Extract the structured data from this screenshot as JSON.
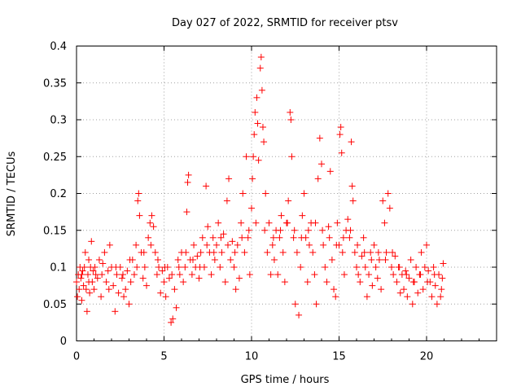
{
  "chart_data": {
    "type": "scatter",
    "title": "Day 027 of 2022, SRMTID for receiver ptsv",
    "xlabel": "GPS time / hours",
    "ylabel": "SRMTID / TECUs",
    "xlim": [
      0,
      24
    ],
    "ylim": [
      0,
      0.4
    ],
    "xticks": [
      0,
      5,
      10,
      15,
      20
    ],
    "yticks": [
      0,
      0.05,
      0.1,
      0.15,
      0.2,
      0.25,
      0.3,
      0.35,
      0.4
    ],
    "xtick_labels": [
      "0",
      "5",
      "10",
      "15",
      "20"
    ],
    "ytick_labels": [
      "0",
      "0.05",
      "0.1",
      "0.15",
      "0.2",
      "0.25",
      "0.3",
      "0.35",
      "0.4"
    ],
    "grid": true,
    "marker": "+",
    "series_color": "#ff0000",
    "series": [
      {
        "name": "SRMTID",
        "points": [
          [
            0.0,
            0.08
          ],
          [
            0.05,
            0.06
          ],
          [
            0.1,
            0.09
          ],
          [
            0.15,
            0.07
          ],
          [
            0.2,
            0.1
          ],
          [
            0.25,
            0.085
          ],
          [
            0.3,
            0.055
          ],
          [
            0.35,
            0.095
          ],
          [
            0.4,
            0.075
          ],
          [
            0.45,
            0.1
          ],
          [
            0.5,
            0.12
          ],
          [
            0.55,
            0.07
          ],
          [
            0.6,
            0.04
          ],
          [
            0.65,
            0.09
          ],
          [
            0.7,
            0.11
          ],
          [
            0.75,
            0.065
          ],
          [
            0.8,
            0.1
          ],
          [
            0.85,
            0.135
          ],
          [
            0.9,
            0.08
          ],
          [
            0.95,
            0.095
          ],
          [
            1.0,
            0.07
          ],
          [
            1.1,
            0.09
          ],
          [
            1.2,
            0.085
          ],
          [
            1.3,
            0.11
          ],
          [
            1.4,
            0.06
          ],
          [
            1.5,
            0.105
          ],
          [
            1.6,
            0.12
          ],
          [
            1.7,
            0.08
          ],
          [
            1.8,
            0.095
          ],
          [
            1.9,
            0.13
          ],
          [
            2.0,
            0.1
          ],
          [
            2.1,
            0.075
          ],
          [
            2.2,
            0.04
          ],
          [
            2.3,
            0.09
          ],
          [
            2.4,
            0.065
          ],
          [
            2.5,
            0.1
          ],
          [
            2.6,
            0.085
          ],
          [
            2.7,
            0.06
          ],
          [
            2.8,
            0.07
          ],
          [
            2.9,
            0.095
          ],
          [
            3.0,
            0.05
          ],
          [
            3.1,
            0.08
          ],
          [
            3.2,
            0.11
          ],
          [
            3.3,
            0.09
          ],
          [
            3.4,
            0.13
          ],
          [
            3.5,
            0.19
          ],
          [
            3.55,
            0.2
          ],
          [
            3.6,
            0.17
          ],
          [
            3.7,
            0.12
          ],
          [
            3.8,
            0.085
          ],
          [
            3.9,
            0.1
          ],
          [
            4.0,
            0.075
          ],
          [
            4.1,
            0.14
          ],
          [
            4.2,
            0.16
          ],
          [
            4.3,
            0.17
          ],
          [
            4.4,
            0.155
          ],
          [
            4.5,
            0.12
          ],
          [
            4.6,
            0.09
          ],
          [
            4.7,
            0.1
          ],
          [
            4.8,
            0.065
          ],
          [
            4.9,
            0.095
          ],
          [
            5.0,
            0.08
          ],
          [
            5.1,
            0.06
          ],
          [
            5.2,
            0.1
          ],
          [
            5.3,
            0.085
          ],
          [
            5.4,
            0.025
          ],
          [
            5.5,
            0.03
          ],
          [
            5.6,
            0.07
          ],
          [
            5.7,
            0.045
          ],
          [
            5.8,
            0.11
          ],
          [
            5.9,
            0.09
          ],
          [
            6.0,
            0.12
          ],
          [
            6.1,
            0.08
          ],
          [
            6.2,
            0.1
          ],
          [
            6.3,
            0.175
          ],
          [
            6.35,
            0.215
          ],
          [
            6.4,
            0.225
          ],
          [
            6.5,
            0.11
          ],
          [
            6.6,
            0.09
          ],
          [
            6.7,
            0.13
          ],
          [
            6.8,
            0.1
          ],
          [
            6.9,
            0.115
          ],
          [
            7.0,
            0.085
          ],
          [
            7.1,
            0.12
          ],
          [
            7.2,
            0.14
          ],
          [
            7.3,
            0.1
          ],
          [
            7.4,
            0.21
          ],
          [
            7.5,
            0.155
          ],
          [
            7.6,
            0.12
          ],
          [
            7.7,
            0.09
          ],
          [
            7.8,
            0.14
          ],
          [
            7.9,
            0.11
          ],
          [
            8.0,
            0.13
          ],
          [
            8.1,
            0.16
          ],
          [
            8.2,
            0.1
          ],
          [
            8.3,
            0.12
          ],
          [
            8.4,
            0.145
          ],
          [
            8.5,
            0.08
          ],
          [
            8.6,
            0.19
          ],
          [
            8.7,
            0.22
          ],
          [
            8.8,
            0.11
          ],
          [
            8.9,
            0.135
          ],
          [
            9.0,
            0.1
          ],
          [
            9.1,
            0.07
          ],
          [
            9.2,
            0.13
          ],
          [
            9.3,
            0.085
          ],
          [
            9.4,
            0.16
          ],
          [
            9.5,
            0.2
          ],
          [
            9.6,
            0.12
          ],
          [
            9.7,
            0.25
          ],
          [
            9.8,
            0.14
          ],
          [
            9.9,
            0.09
          ],
          [
            10.0,
            0.18
          ],
          [
            10.05,
            0.22
          ],
          [
            10.1,
            0.25
          ],
          [
            10.15,
            0.28
          ],
          [
            10.2,
            0.31
          ],
          [
            10.3,
            0.33
          ],
          [
            10.35,
            0.295
          ],
          [
            10.4,
            0.245
          ],
          [
            10.5,
            0.37
          ],
          [
            10.55,
            0.385
          ],
          [
            10.6,
            0.34
          ],
          [
            10.65,
            0.29
          ],
          [
            10.7,
            0.27
          ],
          [
            10.8,
            0.2
          ],
          [
            10.9,
            0.12
          ],
          [
            11.0,
            0.16
          ],
          [
            11.1,
            0.09
          ],
          [
            11.2,
            0.13
          ],
          [
            11.3,
            0.11
          ],
          [
            11.4,
            0.15
          ],
          [
            11.5,
            0.09
          ],
          [
            11.6,
            0.14
          ],
          [
            11.7,
            0.17
          ],
          [
            11.8,
            0.12
          ],
          [
            11.9,
            0.08
          ],
          [
            12.0,
            0.16
          ],
          [
            12.1,
            0.19
          ],
          [
            12.2,
            0.31
          ],
          [
            12.25,
            0.3
          ],
          [
            12.3,
            0.25
          ],
          [
            12.4,
            0.14
          ],
          [
            12.5,
            0.05
          ],
          [
            12.6,
            0.12
          ],
          [
            12.7,
            0.035
          ],
          [
            12.8,
            0.1
          ],
          [
            12.9,
            0.17
          ],
          [
            13.0,
            0.2
          ],
          [
            13.1,
            0.14
          ],
          [
            13.2,
            0.08
          ],
          [
            13.3,
            0.13
          ],
          [
            13.4,
            0.16
          ],
          [
            13.5,
            0.12
          ],
          [
            13.6,
            0.09
          ],
          [
            13.7,
            0.05
          ],
          [
            13.8,
            0.22
          ],
          [
            13.9,
            0.275
          ],
          [
            14.0,
            0.24
          ],
          [
            14.1,
            0.13
          ],
          [
            14.2,
            0.1
          ],
          [
            14.3,
            0.08
          ],
          [
            14.4,
            0.155
          ],
          [
            14.5,
            0.23
          ],
          [
            14.6,
            0.11
          ],
          [
            14.7,
            0.07
          ],
          [
            14.8,
            0.06
          ],
          [
            14.9,
            0.16
          ],
          [
            15.0,
            0.13
          ],
          [
            15.05,
            0.28
          ],
          [
            15.1,
            0.29
          ],
          [
            15.15,
            0.255
          ],
          [
            15.2,
            0.12
          ],
          [
            15.3,
            0.09
          ],
          [
            15.4,
            0.15
          ],
          [
            15.5,
            0.165
          ],
          [
            15.6,
            0.14
          ],
          [
            15.7,
            0.27
          ],
          [
            15.75,
            0.21
          ],
          [
            15.8,
            0.19
          ],
          [
            15.9,
            0.12
          ],
          [
            16.0,
            0.1
          ],
          [
            16.1,
            0.09
          ],
          [
            16.2,
            0.08
          ],
          [
            16.3,
            0.115
          ],
          [
            16.4,
            0.14
          ],
          [
            16.5,
            0.1
          ],
          [
            16.6,
            0.06
          ],
          [
            16.7,
            0.09
          ],
          [
            16.8,
            0.12
          ],
          [
            16.9,
            0.075
          ],
          [
            17.0,
            0.13
          ],
          [
            17.1,
            0.1
          ],
          [
            17.2,
            0.085
          ],
          [
            17.3,
            0.11
          ],
          [
            17.4,
            0.07
          ],
          [
            17.5,
            0.19
          ],
          [
            17.6,
            0.16
          ],
          [
            17.7,
            0.12
          ],
          [
            17.8,
            0.2
          ],
          [
            17.9,
            0.18
          ],
          [
            18.0,
            0.1
          ],
          [
            18.1,
            0.09
          ],
          [
            18.2,
            0.115
          ],
          [
            18.3,
            0.08
          ],
          [
            18.4,
            0.1
          ],
          [
            18.5,
            0.065
          ],
          [
            18.6,
            0.09
          ],
          [
            18.7,
            0.07
          ],
          [
            18.8,
            0.095
          ],
          [
            18.9,
            0.06
          ],
          [
            19.0,
            0.085
          ],
          [
            19.1,
            0.11
          ],
          [
            19.2,
            0.05
          ],
          [
            19.3,
            0.08
          ],
          [
            19.4,
            0.1
          ],
          [
            19.5,
            0.065
          ],
          [
            19.6,
            0.09
          ],
          [
            19.7,
            0.12
          ],
          [
            19.8,
            0.07
          ],
          [
            19.9,
            0.1
          ],
          [
            20.0,
            0.13
          ],
          [
            20.1,
            0.095
          ],
          [
            20.2,
            0.08
          ],
          [
            20.3,
            0.06
          ],
          [
            20.4,
            0.1
          ],
          [
            20.5,
            0.075
          ],
          [
            20.6,
            0.05
          ],
          [
            20.7,
            0.09
          ],
          [
            20.8,
            0.06
          ],
          [
            20.9,
            0.085
          ],
          [
            20.95,
            0.105
          ],
          [
            0.3,
            0.09
          ],
          [
            0.7,
            0.08
          ],
          [
            1.05,
            0.1
          ],
          [
            1.45,
            0.09
          ],
          [
            1.85,
            0.07
          ],
          [
            2.25,
            0.1
          ],
          [
            2.65,
            0.09
          ],
          [
            3.05,
            0.11
          ],
          [
            3.45,
            0.1
          ],
          [
            3.85,
            0.12
          ],
          [
            4.25,
            0.13
          ],
          [
            4.65,
            0.11
          ],
          [
            5.05,
            0.1
          ],
          [
            5.45,
            0.09
          ],
          [
            5.85,
            0.1
          ],
          [
            6.25,
            0.12
          ],
          [
            6.65,
            0.11
          ],
          [
            7.05,
            0.1
          ],
          [
            7.45,
            0.13
          ],
          [
            7.85,
            0.12
          ],
          [
            8.25,
            0.14
          ],
          [
            8.65,
            0.13
          ],
          [
            9.05,
            0.12
          ],
          [
            9.45,
            0.14
          ],
          [
            9.85,
            0.15
          ],
          [
            10.25,
            0.16
          ],
          [
            10.75,
            0.15
          ],
          [
            11.25,
            0.14
          ],
          [
            11.65,
            0.15
          ],
          [
            12.05,
            0.16
          ],
          [
            12.45,
            0.15
          ],
          [
            12.85,
            0.14
          ],
          [
            13.25,
            0.15
          ],
          [
            13.65,
            0.16
          ],
          [
            14.05,
            0.15
          ],
          [
            14.45,
            0.14
          ],
          [
            14.85,
            0.13
          ],
          [
            15.25,
            0.14
          ],
          [
            15.65,
            0.15
          ],
          [
            16.05,
            0.13
          ],
          [
            16.45,
            0.12
          ],
          [
            16.85,
            0.11
          ],
          [
            17.25,
            0.12
          ],
          [
            17.65,
            0.11
          ],
          [
            18.05,
            0.12
          ],
          [
            18.45,
            0.1
          ],
          [
            18.85,
            0.09
          ],
          [
            19.25,
            0.08
          ],
          [
            19.65,
            0.09
          ],
          [
            20.05,
            0.08
          ],
          [
            20.45,
            0.09
          ],
          [
            20.85,
            0.07
          ]
        ]
      }
    ]
  }
}
